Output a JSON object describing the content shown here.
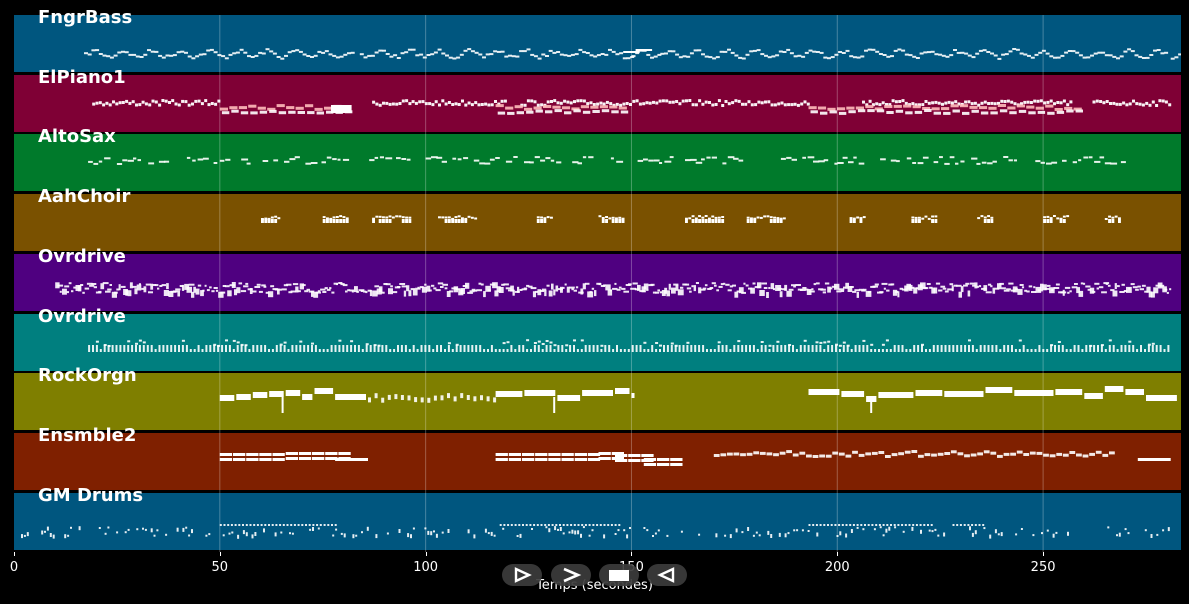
{
  "tracks": [
    {
      "name": "FngrBass",
      "color": "#00567f",
      "pattern": "bass"
    },
    {
      "name": "ElPiano1",
      "color": "#7f0035",
      "pattern": "piano"
    },
    {
      "name": "AltoSax",
      "color": "#007a2b",
      "pattern": "sax"
    },
    {
      "name": "AahChoir",
      "color": "#7a5100",
      "pattern": "choir"
    },
    {
      "name": "Ovrdrive",
      "color": "#4f0080",
      "pattern": "dense"
    },
    {
      "name": "Ovrdrive",
      "color": "#007f7f",
      "pattern": "rhythm"
    },
    {
      "name": "RockOrgn",
      "color": "#7f7f00",
      "pattern": "organ"
    },
    {
      "name": "Ensmble2",
      "color": "#7f2000",
      "pattern": "ensemble"
    },
    {
      "name": "GM Drums",
      "color": "#00567f",
      "pattern": "drums"
    }
  ],
  "axis": {
    "xlabel": "Temps (secondes)",
    "ticks": [
      "0",
      "50",
      "100",
      "150",
      "200",
      "250"
    ],
    "tick_values": [
      0,
      50,
      100,
      150,
      200,
      250
    ],
    "xmax": 283.5
  },
  "controls": [
    {
      "name": "play-outline-icon"
    },
    {
      "name": "play-icon"
    },
    {
      "name": "stop-icon"
    },
    {
      "name": "rewind-icon"
    }
  ]
}
